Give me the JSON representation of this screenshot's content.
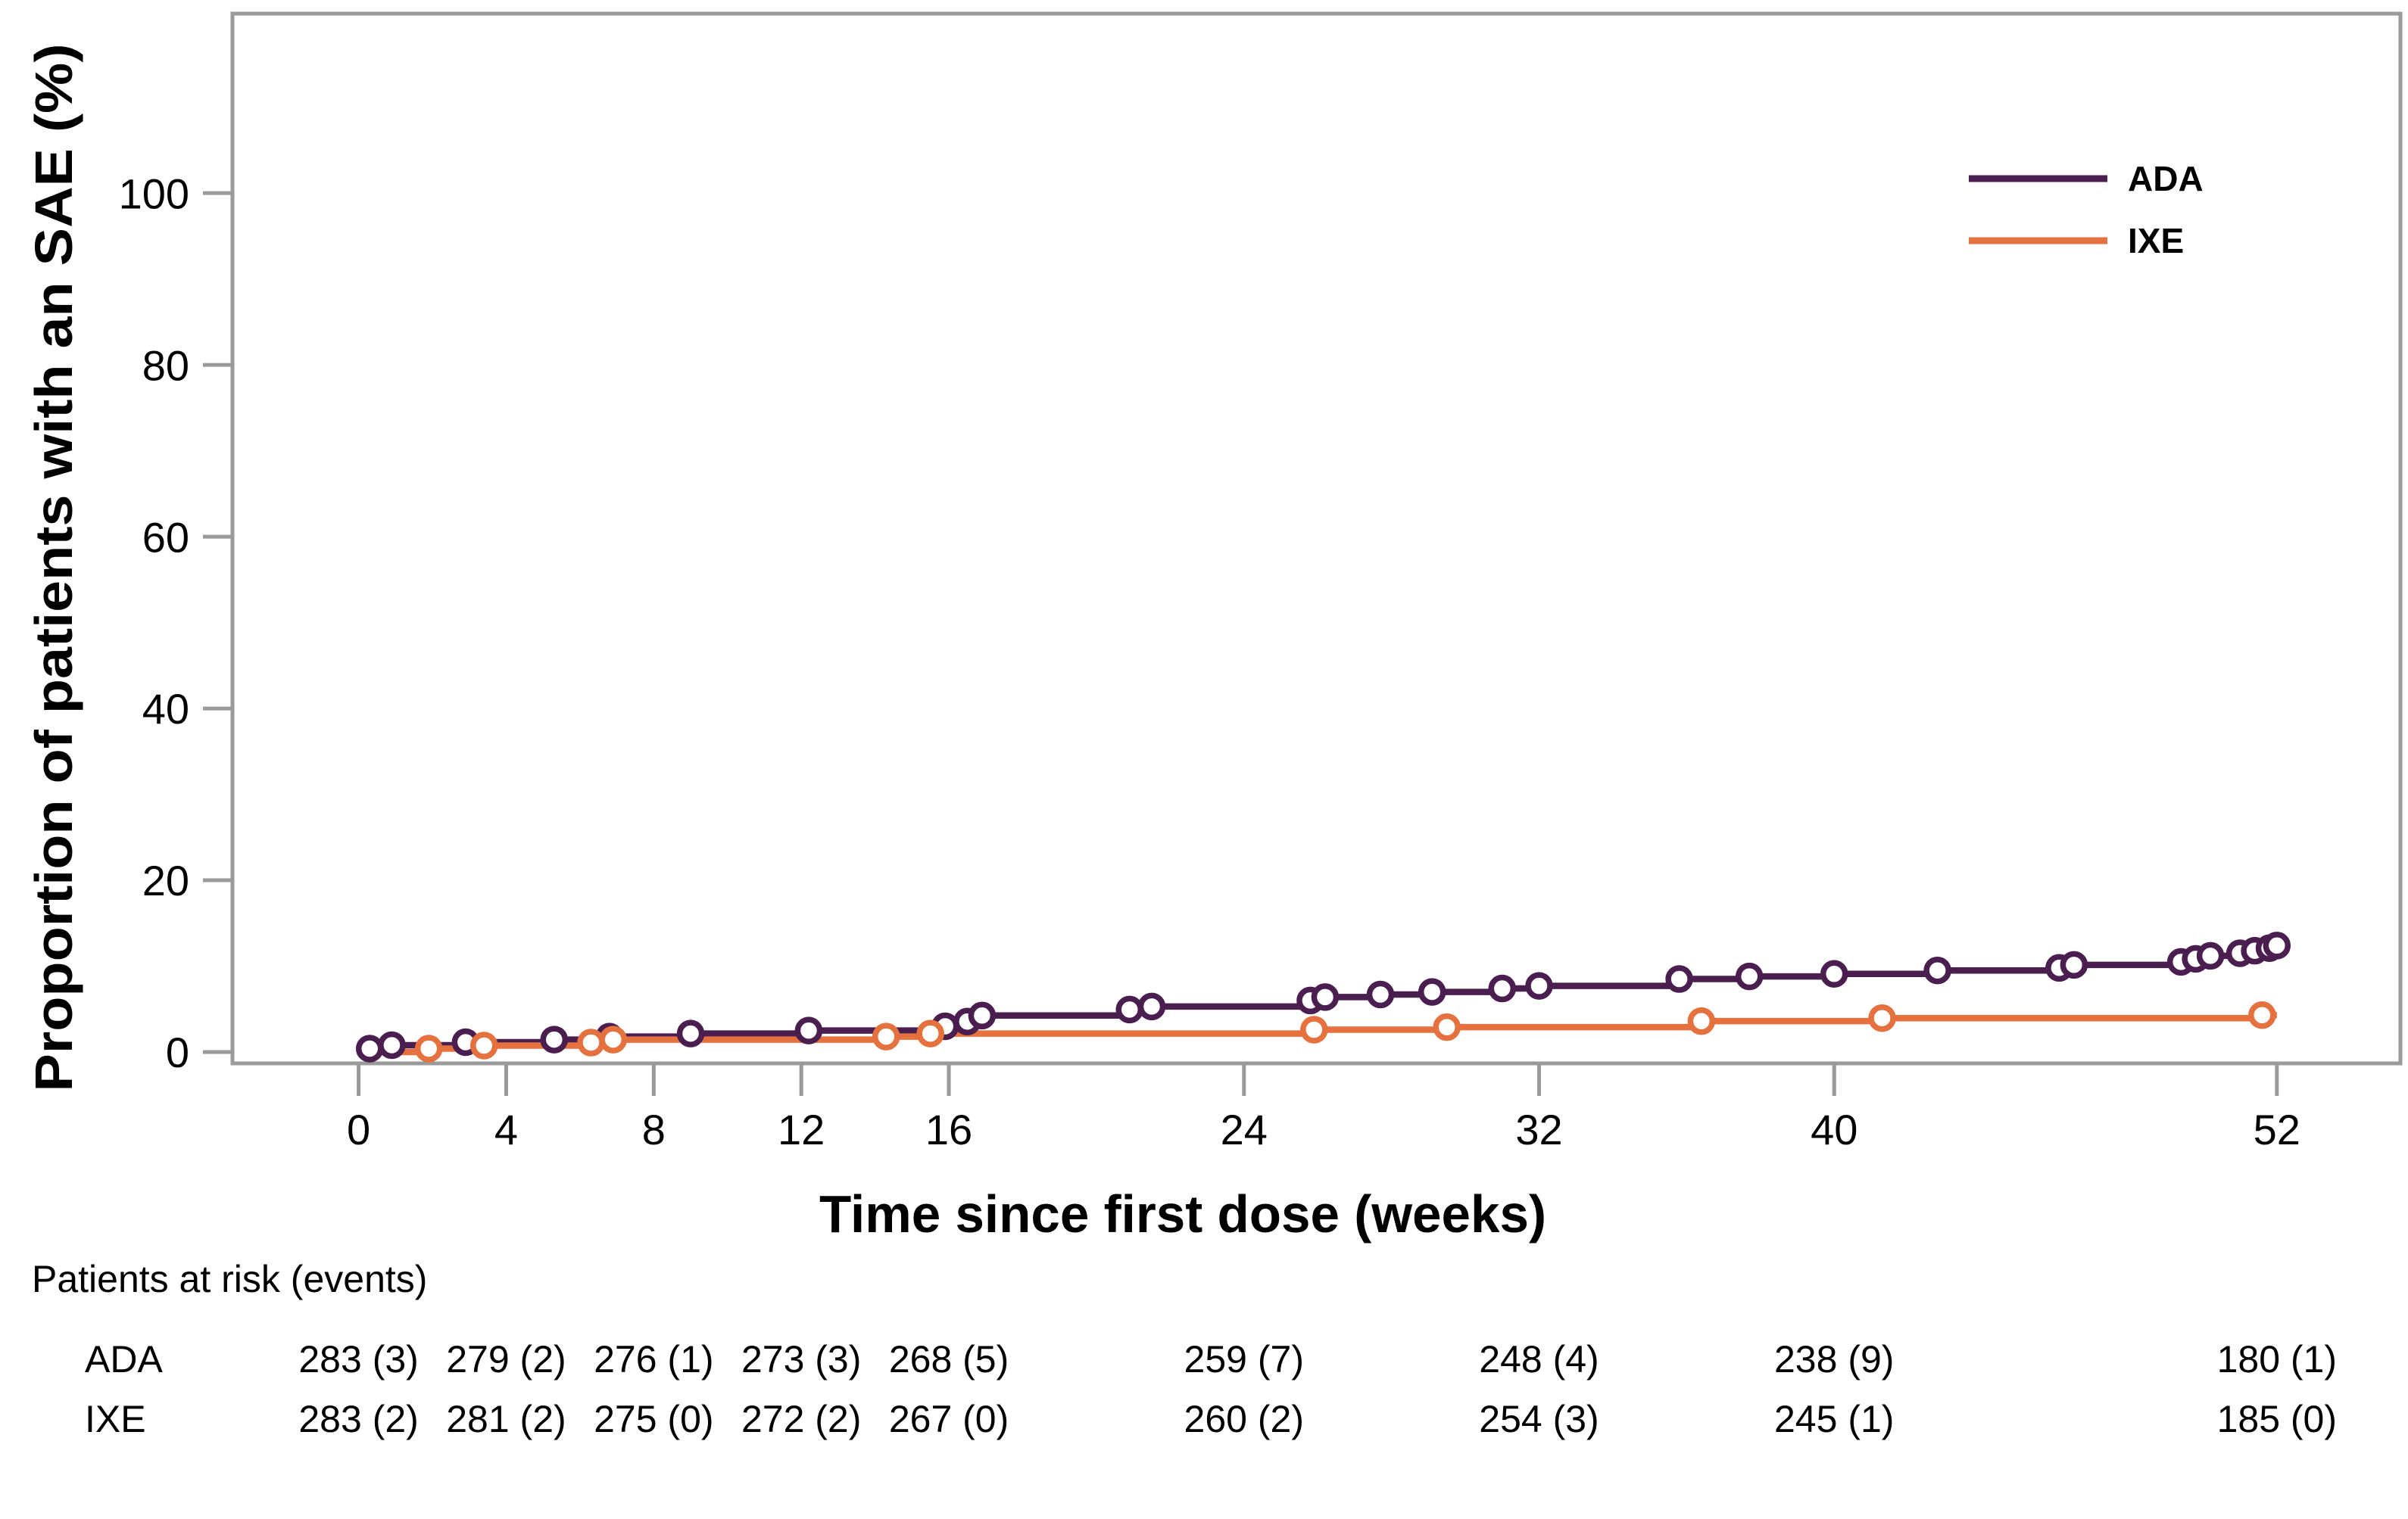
{
  "figure": {
    "background": "#ffffff",
    "text_color": "#000000"
  },
  "chart_data": {
    "type": "line",
    "subtype": "cumulative-incidence-step",
    "title": "",
    "xlabel": "Time since first dose (weeks)",
    "ylabel": "Proportion of patients with an SAE (%)",
    "x_ticks": [
      0,
      4,
      8,
      12,
      16,
      24,
      32,
      40,
      52
    ],
    "y_ticks": [
      0,
      20,
      40,
      60,
      80,
      100
    ],
    "xlim": [
      -3.42,
      55.35
    ],
    "ylim": [
      -1.32,
      120.9
    ],
    "grid": false,
    "frame": true,
    "marker": "open-circle",
    "legend": {
      "position": "top-right",
      "entries": [
        "ADA",
        "IXE"
      ]
    },
    "colors": {
      "axis": "#9a9a9a",
      "ada": "#4b1e50",
      "ixe": "#e5713e",
      "marker_fill": "#ffffff"
    },
    "series": [
      {
        "name": "ADA",
        "color": "#4b1e50",
        "start_week": 0,
        "end_week": 52,
        "points": [
          [
            0.3,
            0.4
          ],
          [
            0.9,
            0.8
          ],
          [
            2.9,
            1.15
          ],
          [
            5.3,
            1.45
          ],
          [
            6.8,
            1.8
          ],
          [
            9.0,
            2.15
          ],
          [
            12.2,
            2.5
          ],
          [
            15.9,
            3.0
          ],
          [
            16.5,
            3.55
          ],
          [
            16.9,
            4.25
          ],
          [
            20.9,
            4.95
          ],
          [
            21.5,
            5.3
          ],
          [
            25.8,
            6.0
          ],
          [
            26.2,
            6.4
          ],
          [
            27.7,
            6.7
          ],
          [
            29.1,
            7.0
          ],
          [
            31.0,
            7.4
          ],
          [
            32.0,
            7.7
          ],
          [
            35.8,
            8.5
          ],
          [
            37.7,
            8.8
          ],
          [
            40.0,
            9.1
          ],
          [
            42.8,
            9.5
          ],
          [
            46.1,
            9.8
          ],
          [
            46.5,
            10.15
          ],
          [
            49.4,
            10.5
          ],
          [
            49.8,
            10.85
          ],
          [
            50.2,
            11.2
          ],
          [
            51.0,
            11.5
          ],
          [
            51.4,
            11.8
          ],
          [
            51.8,
            12.1
          ],
          [
            52.0,
            12.4
          ]
        ]
      },
      {
        "name": "IXE",
        "color": "#e5713e",
        "start_week": 0,
        "end_week": 52,
        "points": [
          [
            1.9,
            0.4
          ],
          [
            3.4,
            0.75
          ],
          [
            6.3,
            1.1
          ],
          [
            6.9,
            1.45
          ],
          [
            14.3,
            1.8
          ],
          [
            15.5,
            2.15
          ],
          [
            25.9,
            2.6
          ],
          [
            29.5,
            2.9
          ],
          [
            36.4,
            3.6
          ],
          [
            41.3,
            3.95
          ],
          [
            51.6,
            4.3
          ]
        ]
      }
    ]
  },
  "at_risk": {
    "header": "Patients at risk (events)",
    "columns_weeks": [
      0,
      4,
      8,
      12,
      16,
      24,
      32,
      40,
      52
    ],
    "rows": [
      {
        "label": "ADA",
        "values": [
          "283 (3)",
          "279 (2)",
          "276 (1)",
          "273 (3)",
          "268 (5)",
          "259 (7)",
          "248 (4)",
          "238 (9)",
          "180 (1)"
        ]
      },
      {
        "label": "IXE",
        "values": [
          "283 (2)",
          "281 (2)",
          "275 (0)",
          "272 (2)",
          "267 (0)",
          "260 (2)",
          "254 (3)",
          "245 (1)",
          "185 (0)"
        ]
      }
    ]
  }
}
